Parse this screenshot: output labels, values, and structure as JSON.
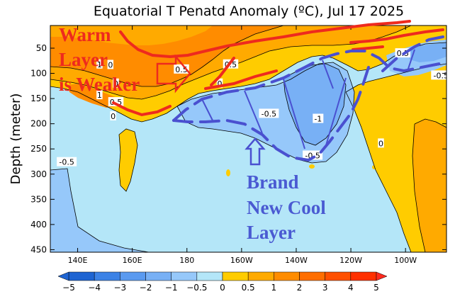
{
  "chart_data": {
    "type": "heatmap",
    "title": "Equatorial T Penatd Anomaly (ºC), Jul 17 2025",
    "ylabel": "Depth (meter)",
    "xlabel": "",
    "x_tick_labels": [
      "140E",
      "160E",
      "180",
      "160W",
      "140W",
      "120W",
      "100W"
    ],
    "x_tick_values": [
      140,
      160,
      180,
      200,
      220,
      240,
      260
    ],
    "xlim": [
      130,
      275
    ],
    "y_tick_labels": [
      "50",
      "100",
      "150",
      "200",
      "250",
      "300",
      "350",
      "400",
      "450"
    ],
    "y_tick_values": [
      50,
      100,
      150,
      200,
      250,
      300,
      350,
      400,
      450
    ],
    "ylim": [
      455,
      5
    ],
    "colorbar": {
      "levels": [
        -5,
        -4,
        -3,
        -2,
        -1,
        -0.5,
        0,
        0.5,
        1,
        2,
        3,
        4,
        5
      ],
      "labels": [
        "−5",
        "−4",
        "−3",
        "−2",
        "−1",
        "−0.5",
        "0",
        "0.5",
        "1",
        "2",
        "3",
        "4",
        "5"
      ],
      "colors": [
        "#1e64d2",
        "#3c82e6",
        "#5a9af0",
        "#78b0f5",
        "#96c8fa",
        "#b4e6f8",
        "#ffcc00",
        "#ffaa00",
        "#ff8c00",
        "#ff6e00",
        "#ff5000",
        "#ff3000"
      ],
      "extend_low_color": "#1e64d2",
      "extend_high_color": "#ff2a1e"
    },
    "contour_labels": [
      {
        "text": "1",
        "x": 148,
        "y": 82
      },
      {
        "text": "0",
        "x": 152,
        "y": 83
      },
      {
        "text": "0.5",
        "x": 178,
        "y": 92
      },
      {
        "text": "0.5",
        "x": 196,
        "y": 82
      },
      {
        "text": "1",
        "x": 148,
        "y": 143
      },
      {
        "text": "0.5",
        "x": 154,
        "y": 157
      },
      {
        "text": "0",
        "x": 153,
        "y": 185
      },
      {
        "text": "0",
        "x": 154,
        "y": 120
      },
      {
        "text": "0",
        "x": 192,
        "y": 120
      },
      {
        "text": "-0.5",
        "x": 210,
        "y": 180
      },
      {
        "text": "-1",
        "x": 228,
        "y": 190
      },
      {
        "text": "-0.5",
        "x": 226,
        "y": 263
      },
      {
        "text": "0",
        "x": 251,
        "y": 239
      },
      {
        "text": "-0.5",
        "x": 136,
        "y": 276
      },
      {
        "text": "0.5",
        "x": 259,
        "y": 60
      },
      {
        "text": "-0.5",
        "x": 273,
        "y": 104
      }
    ]
  },
  "annotations": {
    "warm_text": [
      "Warm",
      "Layer",
      "is Weaker"
    ],
    "cool_text": [
      "Brand",
      "New Cool",
      "Layer"
    ]
  },
  "colors": {
    "warm_annotation": "#ee2a1e",
    "cool_annotation": "#4a5ad2",
    "warm_line": "#ee2a1e",
    "cool_line": "#4a50d0"
  }
}
